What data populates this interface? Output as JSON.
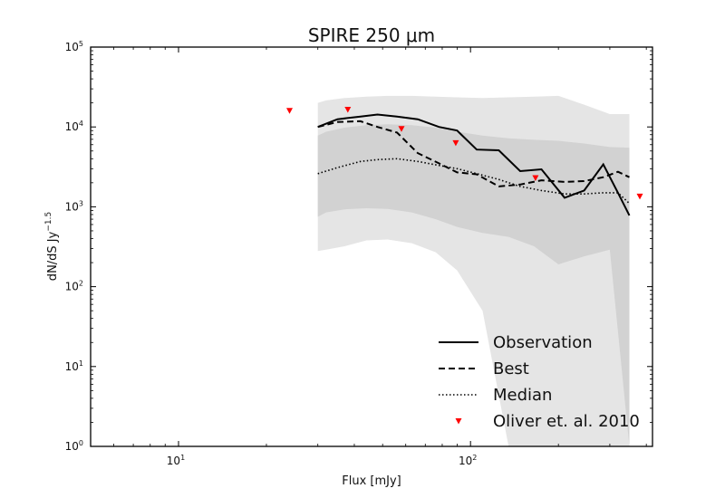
{
  "chart_data": {
    "type": "line",
    "title": "SPIRE 250 μm",
    "xlabel": "Flux [mJy]",
    "ylabel": "dN/dS Jy",
    "ylabel_exponent": "−1.5",
    "xscale": "log",
    "yscale": "log",
    "xlim": [
      5,
      420
    ],
    "ylim": [
      1,
      100000
    ],
    "x_ticks": [
      {
        "value": 10,
        "base": "10",
        "exp": "1"
      },
      {
        "value": 100,
        "base": "10",
        "exp": "2"
      }
    ],
    "y_ticks": [
      {
        "value": 1,
        "base": "10",
        "exp": "0"
      },
      {
        "value": 10,
        "base": "10",
        "exp": "1"
      },
      {
        "value": 100,
        "base": "10",
        "exp": "2"
      },
      {
        "value": 1000,
        "base": "10",
        "exp": "3"
      },
      {
        "value": 10000,
        "base": "10",
        "exp": "4"
      },
      {
        "value": 100000,
        "base": "10",
        "exp": "5"
      }
    ],
    "grid": false,
    "legend_position": "bottom-right",
    "bands": [
      {
        "color": "#e5e5e5",
        "x": [
          30,
          32,
          37,
          44,
          52,
          63,
          76,
          90,
          110,
          135,
          165,
          200,
          245,
          300,
          350
        ],
        "upper": [
          20000,
          21500,
          23000,
          24000,
          24500,
          24500,
          24000,
          23500,
          23000,
          23500,
          24000,
          24500,
          19000,
          14500,
          14500
        ],
        "lower": [
          280,
          290,
          320,
          380,
          390,
          350,
          270,
          160,
          50,
          1,
          1,
          1,
          1,
          1,
          1
        ]
      },
      {
        "color": "#d2d2d2",
        "x": [
          30,
          32,
          37,
          44,
          52,
          63,
          76,
          90,
          110,
          135,
          165,
          200,
          245,
          300,
          350
        ],
        "upper": [
          7800,
          8700,
          9800,
          10500,
          10800,
          10500,
          9800,
          8700,
          7800,
          7200,
          6900,
          6700,
          6200,
          5600,
          5500
        ],
        "lower": [
          750,
          850,
          930,
          960,
          940,
          850,
          700,
          560,
          470,
          420,
          320,
          190,
          240,
          290,
          1
        ]
      }
    ],
    "series": [
      {
        "name": "Observation",
        "style": "solid",
        "x": [
          30,
          35,
          42,
          48,
          56,
          66,
          78,
          90,
          105,
          125,
          148,
          175,
          210,
          245,
          285,
          320,
          350
        ],
        "y": [
          10000,
          12500,
          13500,
          14300,
          13500,
          12500,
          10000,
          9000,
          5200,
          5100,
          2800,
          2950,
          1300,
          1600,
          3400,
          1500,
          780
        ]
      },
      {
        "name": "Best",
        "style": "dashed",
        "x": [
          30,
          35,
          42,
          48,
          56,
          66,
          78,
          90,
          105,
          125,
          148,
          175,
          210,
          245,
          285,
          320,
          350
        ],
        "y": [
          10000,
          11500,
          11800,
          10000,
          8500,
          4700,
          3500,
          2700,
          2550,
          1800,
          1900,
          2150,
          2050,
          2100,
          2350,
          2750,
          2350
        ]
      },
      {
        "name": "Median",
        "style": "dotted",
        "x": [
          30,
          35,
          42,
          48,
          56,
          66,
          78,
          90,
          105,
          125,
          148,
          175,
          210,
          245,
          285,
          320,
          350
        ],
        "y": [
          2600,
          3100,
          3700,
          3900,
          4000,
          3700,
          3300,
          3000,
          2600,
          2200,
          1800,
          1600,
          1450,
          1450,
          1500,
          1500,
          1100
        ]
      }
    ],
    "markers": {
      "name": "Oliver et. al. 2010",
      "color": "#ff0000",
      "x": [
        24,
        38,
        58,
        89,
        167,
        380
      ],
      "y": [
        16000,
        16500,
        9500,
        6300,
        2300,
        1350
      ]
    }
  }
}
